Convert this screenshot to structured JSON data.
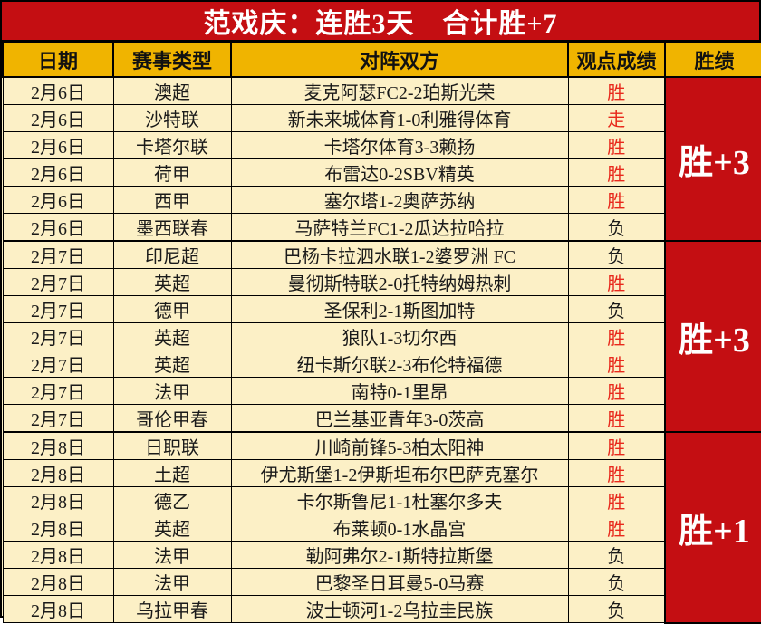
{
  "title": "范戏庆：连胜3天　合计胜+7",
  "colors": {
    "title_bg": "#c40e12",
    "title_text": "#ffffff",
    "header_bg": "#f0b400",
    "cell_bg": "#fcf0c6",
    "win_text": "#e8291c",
    "loss_text": "#1a1a1a",
    "summary_bg": "#c40e12",
    "summary_text": "#ffffff",
    "border": "#000000"
  },
  "chart_data": {
    "type": "table",
    "title": "范戏庆：连胜3天　合计胜+7",
    "columns": [
      "日期",
      "赛事类型",
      "对阵双方",
      "观点成绩",
      "胜绩"
    ],
    "groups": [
      {
        "summary": "胜+3",
        "rows": [
          {
            "date": "2月6日",
            "league": "澳超",
            "match": "麦克阿瑟FC2-2珀斯光荣",
            "result": "胜",
            "result_color": "red"
          },
          {
            "date": "2月6日",
            "league": "沙特联",
            "match": "新未来城体育1-0利雅得体育",
            "result": "走",
            "result_color": "red"
          },
          {
            "date": "2月6日",
            "league": "卡塔尔联",
            "match": "卡塔尔体育3-3赖扬",
            "result": "胜",
            "result_color": "red"
          },
          {
            "date": "2月6日",
            "league": "荷甲",
            "match": "布雷达0-2SBV精英",
            "result": "胜",
            "result_color": "red"
          },
          {
            "date": "2月6日",
            "league": "西甲",
            "match": "塞尔塔1-2奥萨苏纳",
            "result": "胜",
            "result_color": "red"
          },
          {
            "date": "2月6日",
            "league": "墨西联春",
            "match": "马萨特兰FC1-2瓜达拉哈拉",
            "result": "负",
            "result_color": "black"
          }
        ]
      },
      {
        "summary": "胜+3",
        "rows": [
          {
            "date": "2月7日",
            "league": "印尼超",
            "match": "巴杨卡拉泗水联1-2婆罗洲 FC",
            "result": "负",
            "result_color": "black"
          },
          {
            "date": "2月7日",
            "league": "英超",
            "match": "曼彻斯特联2-0托特纳姆热刺",
            "result": "胜",
            "result_color": "red"
          },
          {
            "date": "2月7日",
            "league": "德甲",
            "match": "圣保利2-1斯图加特",
            "result": "负",
            "result_color": "black"
          },
          {
            "date": "2月7日",
            "league": "英超",
            "match": "狼队1-3切尔西",
            "result": "胜",
            "result_color": "red"
          },
          {
            "date": "2月7日",
            "league": "英超",
            "match": "纽卡斯尔联2-3布伦特福德",
            "result": "胜",
            "result_color": "red"
          },
          {
            "date": "2月7日",
            "league": "法甲",
            "match": "南特0-1里昂",
            "result": "胜",
            "result_color": "red"
          },
          {
            "date": "2月7日",
            "league": "哥伦甲春",
            "match": "巴兰基亚青年3-0茨高",
            "result": "胜",
            "result_color": "red"
          }
        ]
      },
      {
        "summary": "胜+1",
        "rows": [
          {
            "date": "2月8日",
            "league": "日职联",
            "match": "川崎前锋5-3柏太阳神",
            "result": "胜",
            "result_color": "red"
          },
          {
            "date": "2月8日",
            "league": "土超",
            "match": "伊尤斯堡1-2伊斯坦布尔巴萨克塞尔",
            "result": "胜",
            "result_color": "red"
          },
          {
            "date": "2月8日",
            "league": "德乙",
            "match": "卡尔斯鲁尼1-1杜塞尔多夫",
            "result": "胜",
            "result_color": "red"
          },
          {
            "date": "2月8日",
            "league": "英超",
            "match": "布莱顿0-1水晶宫",
            "result": "胜",
            "result_color": "red"
          },
          {
            "date": "2月8日",
            "league": "法甲",
            "match": "勒阿弗尔2-1斯特拉斯堡",
            "result": "负",
            "result_color": "black"
          },
          {
            "date": "2月8日",
            "league": "法甲",
            "match": "巴黎圣日耳曼5-0马赛",
            "result": "负",
            "result_color": "black"
          },
          {
            "date": "2月8日",
            "league": "乌拉甲春",
            "match": "波士顿河1-2乌拉圭民族",
            "result": "负",
            "result_color": "black"
          }
        ]
      }
    ]
  }
}
